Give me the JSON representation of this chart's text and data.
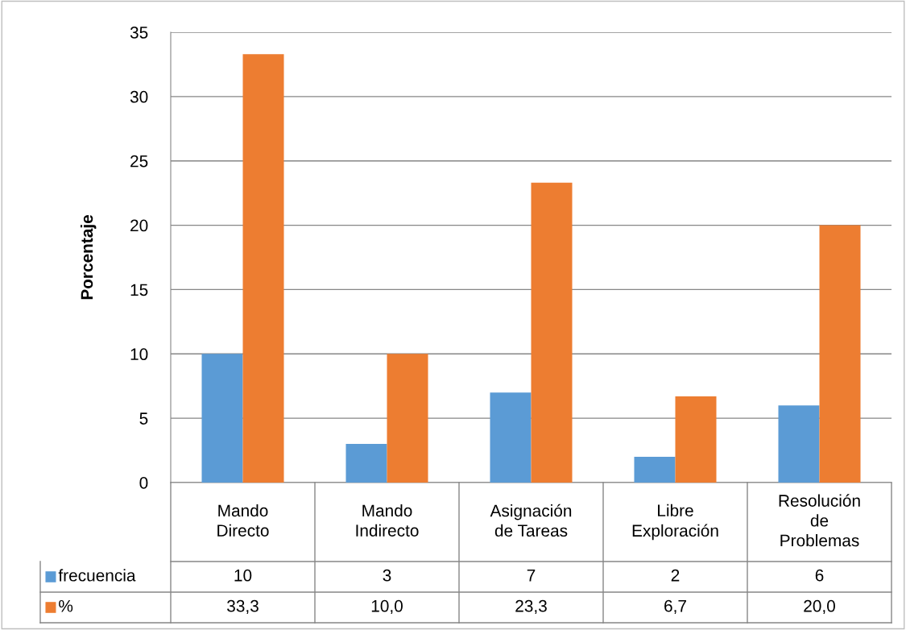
{
  "chart_data": {
    "type": "bar",
    "ylabel": "Porcentaje",
    "categories": [
      "Mando\nDirecto",
      "Mando\nIndirecto",
      "Asignación\nde Tareas",
      "Libre\nExploración",
      "Resolución\nde\nProblemas"
    ],
    "series": [
      {
        "name": "frecuencia",
        "color": "#5b9bd5",
        "values": [
          10,
          3,
          7,
          2,
          6
        ],
        "value_labels": [
          "10",
          "3",
          "7",
          "2",
          "6"
        ]
      },
      {
        "name": "%",
        "color": "#ed7d31",
        "values": [
          33.3,
          10.0,
          23.3,
          6.7,
          20.0
        ],
        "value_labels": [
          "33,3",
          "10,0",
          "23,3",
          "6,7",
          "20,0"
        ]
      }
    ],
    "ylim": [
      0,
      35
    ],
    "yticks": [
      0,
      5,
      10,
      15,
      20,
      25,
      30,
      35
    ],
    "grid": "y",
    "legend": "bottom"
  }
}
